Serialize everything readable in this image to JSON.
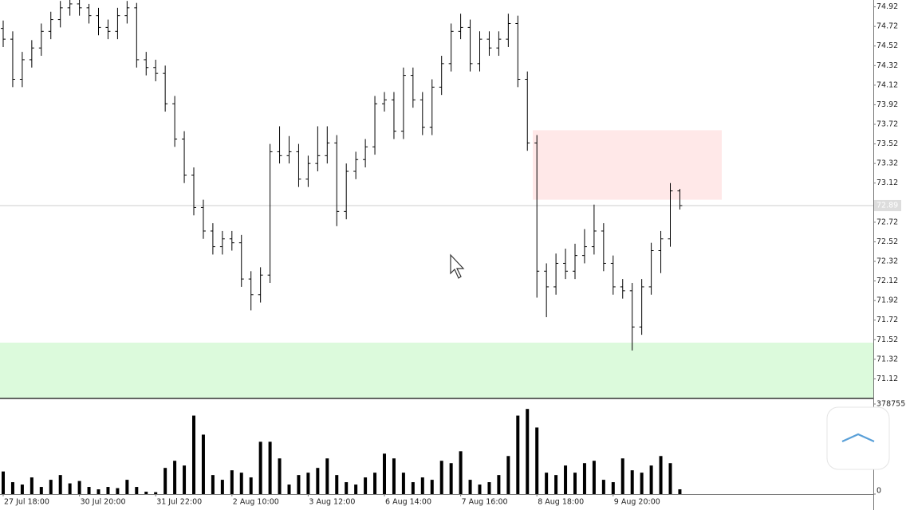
{
  "chart_data": [
    {
      "type": "ohlc",
      "color": "#000000",
      "open": [
        74.7,
        74.59,
        74.18,
        74.38,
        74.5,
        74.67,
        74.79,
        74.91,
        74.95,
        74.91,
        74.83,
        74.71,
        74.67,
        74.83,
        74.91,
        74.38,
        74.3,
        74.24,
        73.93,
        73.57,
        73.2,
        72.87,
        72.63,
        72.47,
        72.55,
        72.51,
        72.14,
        71.98,
        72.18,
        73.44,
        73.4,
        73.44,
        73.16,
        73.32,
        73.4,
        73.53,
        72.83,
        73.24,
        73.36,
        73.49,
        73.93,
        73.97,
        73.65,
        74.22,
        73.97,
        73.69,
        74.1,
        74.34,
        74.67,
        74.71,
        74.34,
        74.59,
        74.5,
        74.59,
        74.75,
        74.18,
        73.53,
        72.22,
        72.06,
        72.3,
        72.22,
        72.38,
        72.47,
        72.63,
        72.3,
        72.06,
        72.02,
        71.65,
        72.06,
        72.43,
        72.55,
        73.04
      ],
      "high": [
        74.78,
        74.67,
        74.46,
        74.58,
        74.75,
        74.87,
        74.98,
        74.99,
        74.99,
        74.95,
        74.91,
        74.79,
        74.91,
        74.98,
        74.96,
        74.46,
        74.38,
        74.32,
        74.01,
        73.65,
        73.28,
        72.95,
        72.71,
        72.63,
        72.63,
        72.59,
        72.22,
        72.26,
        73.52,
        73.7,
        73.6,
        73.52,
        73.4,
        73.7,
        73.7,
        73.61,
        73.32,
        73.44,
        73.57,
        74.01,
        74.05,
        74.05,
        74.3,
        74.3,
        74.05,
        74.18,
        74.42,
        74.75,
        74.85,
        74.79,
        74.67,
        74.67,
        74.67,
        74.85,
        74.83,
        74.26,
        73.61,
        72.3,
        72.4,
        72.45,
        72.5,
        72.65,
        72.9,
        72.71,
        72.38,
        72.14,
        72.1,
        72.14,
        72.51,
        72.63,
        73.12,
        73.06
      ],
      "low": [
        74.51,
        74.1,
        74.1,
        74.3,
        74.42,
        74.59,
        74.71,
        74.83,
        74.83,
        74.75,
        74.63,
        74.59,
        74.59,
        74.75,
        74.3,
        74.22,
        74.16,
        73.85,
        73.49,
        73.12,
        72.79,
        72.55,
        72.39,
        72.39,
        72.43,
        72.06,
        71.82,
        71.9,
        72.1,
        73.32,
        73.32,
        73.08,
        73.08,
        73.24,
        73.32,
        72.68,
        72.75,
        73.16,
        73.28,
        73.41,
        73.85,
        73.57,
        73.57,
        73.89,
        73.61,
        73.61,
        74.02,
        74.26,
        74.59,
        74.26,
        74.26,
        74.42,
        74.42,
        74.51,
        74.1,
        73.45,
        71.95,
        71.75,
        71.98,
        72.14,
        72.14,
        72.3,
        72.39,
        72.22,
        71.98,
        71.94,
        71.41,
        71.57,
        71.98,
        72.2,
        72.47,
        72.85
      ],
      "close": [
        74.59,
        74.18,
        74.38,
        74.5,
        74.67,
        74.79,
        74.91,
        74.95,
        74.91,
        74.83,
        74.71,
        74.67,
        74.83,
        74.91,
        74.38,
        74.3,
        74.24,
        73.93,
        73.57,
        73.2,
        72.87,
        72.63,
        72.47,
        72.55,
        72.51,
        72.14,
        71.98,
        72.18,
        73.44,
        73.4,
        73.44,
        73.16,
        73.32,
        73.4,
        73.53,
        72.83,
        73.24,
        73.36,
        73.49,
        73.93,
        73.97,
        73.65,
        74.22,
        73.97,
        73.69,
        74.1,
        74.34,
        74.67,
        74.71,
        74.34,
        74.59,
        74.5,
        74.59,
        74.75,
        74.18,
        73.53,
        72.22,
        72.06,
        72.3,
        72.22,
        72.38,
        72.47,
        72.63,
        72.3,
        72.06,
        72.02,
        71.65,
        72.06,
        72.43,
        72.55,
        73.04,
        72.89
      ],
      "ylim": [
        70.92,
        74.99
      ],
      "yticks": [
        74.92,
        74.72,
        74.52,
        74.32,
        74.12,
        73.92,
        73.72,
        73.52,
        73.32,
        73.12,
        72.72,
        72.52,
        72.32,
        72.12,
        71.92,
        71.72,
        71.52,
        71.32,
        71.12
      ],
      "current_price": 72.89,
      "zones": [
        {
          "from": 72.95,
          "to": 73.66,
          "color": "#ffe8e8"
        },
        {
          "from": 70.92,
          "to": 71.49,
          "color": "#dcfadc"
        }
      ]
    },
    {
      "type": "bar",
      "color": "#000000",
      "categories": [
        "27 Jul 18:00",
        null,
        null,
        null,
        null,
        null,
        null,
        null,
        "30 Jul 20:00",
        null,
        null,
        null,
        null,
        null,
        null,
        null,
        "31 Jul 22:00",
        null,
        null,
        null,
        null,
        null,
        null,
        null,
        "2 Aug 10:00",
        null,
        null,
        null,
        null,
        null,
        null,
        null,
        "3 Aug 12:00",
        null,
        null,
        null,
        null,
        null,
        null,
        null,
        "6 Aug 14:00",
        null,
        null,
        null,
        null,
        null,
        null,
        null,
        "7 Aug 16:00",
        null,
        null,
        null,
        null,
        null,
        null,
        null,
        "8 Aug 18:00",
        null,
        null,
        null,
        null,
        null,
        null,
        null,
        "9 Aug 20:00",
        null,
        null,
        null,
        null,
        null,
        null,
        null
      ],
      "values": [
        95000,
        50000,
        40000,
        70000,
        30000,
        60000,
        80000,
        45000,
        55000,
        30000,
        20000,
        30000,
        25000,
        60000,
        30000,
        10000,
        8000,
        110000,
        140000,
        120000,
        330000,
        250000,
        80000,
        60000,
        100000,
        90000,
        70000,
        220000,
        220000,
        150000,
        40000,
        80000,
        90000,
        110000,
        150000,
        80000,
        50000,
        40000,
        70000,
        90000,
        170000,
        150000,
        90000,
        50000,
        70000,
        60000,
        140000,
        130000,
        180000,
        60000,
        40000,
        50000,
        80000,
        160000,
        330000,
        358000,
        280000,
        90000,
        80000,
        120000,
        90000,
        130000,
        140000,
        60000,
        50000,
        150000,
        100000,
        90000,
        120000,
        160000,
        130000,
        20000
      ],
      "ylim": [
        0,
        378755
      ],
      "yticks": [
        378755,
        0
      ]
    }
  ]
}
